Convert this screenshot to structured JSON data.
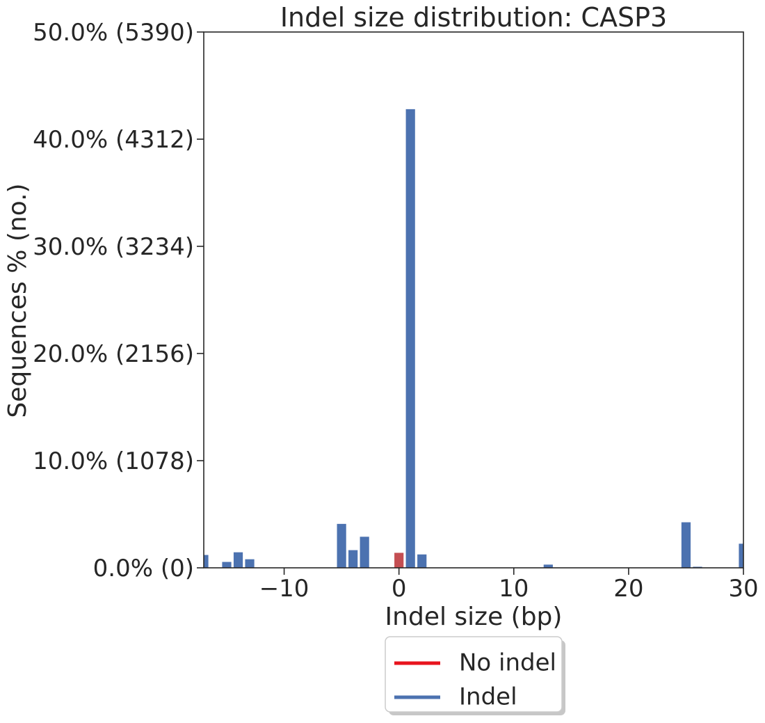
{
  "chart_data": {
    "type": "bar",
    "title": "Indel size distribution: CASP3",
    "xlabel": "Indel size (bp)",
    "ylabel": "Sequences % (no.)",
    "xlim": [
      -17,
      30
    ],
    "ylim": [
      0,
      50
    ],
    "x_ticks": [
      -10,
      0,
      10,
      20,
      30
    ],
    "x_tick_labels": [
      "−10",
      "0",
      "10",
      "20",
      "30"
    ],
    "y_ticks": [
      0,
      10,
      20,
      30,
      40,
      50
    ],
    "y_tick_labels": [
      "0.0% (0)",
      "10.0% (1078)",
      "20.0% (2156)",
      "30.0% (3234)",
      "40.0% (4312)",
      "50.0% (5390)"
    ],
    "grid": false,
    "legend_position": "below",
    "series": [
      {
        "name": "No indel",
        "color": "#c44e52",
        "legend_color": "#e8141e",
        "points": [
          {
            "x": 0,
            "y": 1.4
          }
        ]
      },
      {
        "name": "Indel",
        "color": "#4c72b0",
        "legend_color": "#4c72b0",
        "points": [
          {
            "x": -17,
            "y": 1.2
          },
          {
            "x": -15,
            "y": 0.55
          },
          {
            "x": -14,
            "y": 1.45
          },
          {
            "x": -13,
            "y": 0.8
          },
          {
            "x": -5,
            "y": 4.1
          },
          {
            "x": -4,
            "y": 1.65
          },
          {
            "x": -3,
            "y": 2.9
          },
          {
            "x": 1,
            "y": 42.8
          },
          {
            "x": 2,
            "y": 1.25
          },
          {
            "x": 13,
            "y": 0.3
          },
          {
            "x": 25,
            "y": 4.25
          },
          {
            "x": 26,
            "y": 0.1
          },
          {
            "x": 30,
            "y": 2.25
          }
        ]
      }
    ]
  }
}
